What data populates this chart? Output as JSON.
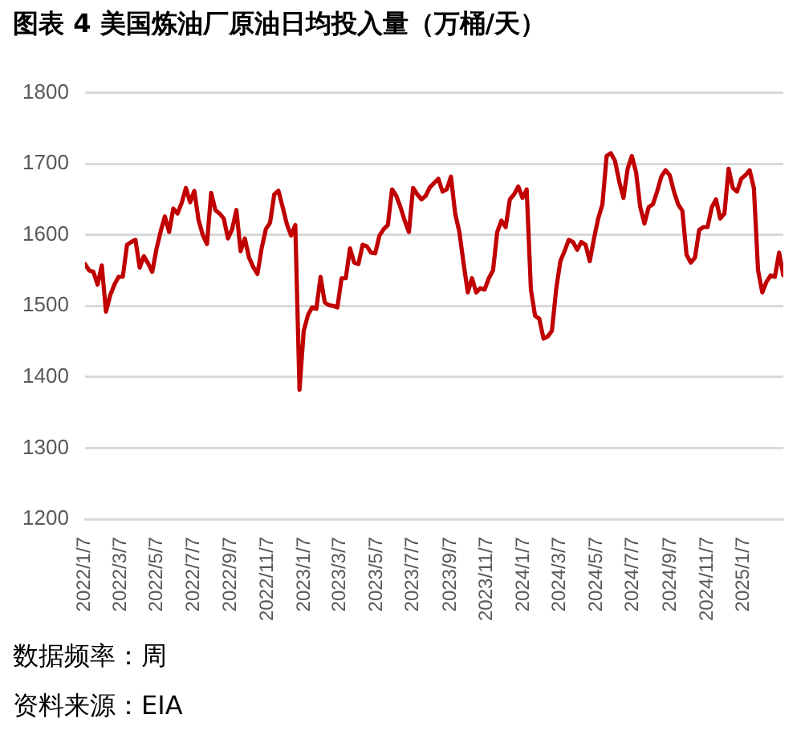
{
  "chart_data": {
    "type": "line",
    "title": "图表 4 美国炼油厂原油日均投入量（万桶/天）",
    "x": [
      "2022-01-07",
      "2022-01-14",
      "2022-01-21",
      "2022-01-28",
      "2022-02-04",
      "2022-02-11",
      "2022-02-18",
      "2022-02-25",
      "2022-03-04",
      "2022-03-11",
      "2022-03-18",
      "2022-03-25",
      "2022-04-01",
      "2022-04-08",
      "2022-04-15",
      "2022-04-22",
      "2022-04-29",
      "2022-05-06",
      "2022-05-13",
      "2022-05-20",
      "2022-05-27",
      "2022-06-03",
      "2022-06-10",
      "2022-06-17",
      "2022-06-24",
      "2022-07-01",
      "2022-07-08",
      "2022-07-15",
      "2022-07-22",
      "2022-07-29",
      "2022-08-05",
      "2022-08-12",
      "2022-08-19",
      "2022-08-26",
      "2022-09-02",
      "2022-09-09",
      "2022-09-16",
      "2022-09-23",
      "2022-09-30",
      "2022-10-07",
      "2022-10-14",
      "2022-10-21",
      "2022-10-28",
      "2022-11-04",
      "2022-11-11",
      "2022-11-18",
      "2022-11-25",
      "2022-12-02",
      "2022-12-09",
      "2022-12-16",
      "2022-12-23",
      "2022-12-30",
      "2023-01-06",
      "2023-01-13",
      "2023-01-20",
      "2023-01-27",
      "2023-02-03",
      "2023-02-10",
      "2023-02-17",
      "2023-02-24",
      "2023-03-03",
      "2023-03-10",
      "2023-03-17",
      "2023-03-24",
      "2023-03-31",
      "2023-04-07",
      "2023-04-14",
      "2023-04-21",
      "2023-04-28",
      "2023-05-05",
      "2023-05-12",
      "2023-05-19",
      "2023-05-26",
      "2023-06-02",
      "2023-06-09",
      "2023-06-16",
      "2023-06-23",
      "2023-06-30",
      "2023-07-07",
      "2023-07-14",
      "2023-07-21",
      "2023-07-28",
      "2023-08-04",
      "2023-08-11",
      "2023-08-18",
      "2023-08-25",
      "2023-09-01",
      "2023-09-08",
      "2023-09-15",
      "2023-09-22",
      "2023-09-29",
      "2023-10-06",
      "2023-10-13",
      "2023-10-20",
      "2023-10-27",
      "2023-11-03",
      "2023-11-10",
      "2023-11-17",
      "2023-11-24",
      "2023-12-01",
      "2023-12-08",
      "2023-12-15",
      "2023-12-22",
      "2023-12-29",
      "2024-01-05",
      "2024-01-12",
      "2024-01-19",
      "2024-01-26",
      "2024-02-02",
      "2024-02-09",
      "2024-02-16",
      "2024-02-23",
      "2024-03-01",
      "2024-03-08",
      "2024-03-15",
      "2024-03-22",
      "2024-03-29",
      "2024-04-05",
      "2024-04-12",
      "2024-04-19",
      "2024-04-26",
      "2024-05-03",
      "2024-05-10",
      "2024-05-17",
      "2024-05-24",
      "2024-05-31",
      "2024-06-07",
      "2024-06-14",
      "2024-06-21",
      "2024-06-28",
      "2024-07-05",
      "2024-07-12",
      "2024-07-19",
      "2024-07-26",
      "2024-08-02",
      "2024-08-09",
      "2024-08-16",
      "2024-08-23",
      "2024-08-30",
      "2024-09-06",
      "2024-09-13",
      "2024-09-20",
      "2024-09-27",
      "2024-10-04",
      "2024-10-11",
      "2024-10-18",
      "2024-10-25",
      "2024-11-01",
      "2024-11-08",
      "2024-11-15",
      "2024-11-22",
      "2024-11-29",
      "2024-12-06",
      "2024-12-13",
      "2024-12-20",
      "2024-12-27",
      "2025-01-03",
      "2025-01-10",
      "2025-01-17",
      "2025-01-24",
      "2025-01-31",
      "2025-02-07",
      "2025-02-14",
      "2025-02-21",
      "2025-02-28",
      "2025-03-07",
      "2025-03-14"
    ],
    "series": [
      {
        "color": "#c00000",
        "values": [
          1559,
          1550,
          1548,
          1530,
          1557,
          1492,
          1515,
          1530,
          1541,
          1541,
          1586,
          1590,
          1593,
          1554,
          1570,
          1560,
          1548,
          1580,
          1605,
          1626,
          1604,
          1637,
          1630,
          1645,
          1666,
          1646,
          1662,
          1621,
          1600,
          1587,
          1659,
          1635,
          1630,
          1623,
          1595,
          1608,
          1635,
          1577,
          1595,
          1568,
          1555,
          1545,
          1581,
          1608,
          1617,
          1657,
          1662,
          1639,
          1615,
          1599,
          1614,
          1382,
          1465,
          1487,
          1498,
          1496,
          1541,
          1505,
          1501,
          1500,
          1498,
          1539,
          1539,
          1581,
          1561,
          1559,
          1586,
          1584,
          1575,
          1574,
          1599,
          1608,
          1614,
          1664,
          1655,
          1639,
          1620,
          1604,
          1666,
          1657,
          1650,
          1655,
          1667,
          1673,
          1679,
          1661,
          1664,
          1682,
          1630,
          1604,
          1560,
          1519,
          1539,
          1519,
          1525,
          1523,
          1539,
          1550,
          1604,
          1620,
          1611,
          1650,
          1657,
          1668,
          1652,
          1664,
          1523,
          1486,
          1482,
          1454,
          1457,
          1465,
          1523,
          1563,
          1577,
          1593,
          1590,
          1579,
          1590,
          1586,
          1563,
          1595,
          1623,
          1643,
          1711,
          1715,
          1704,
          1675,
          1652,
          1693,
          1711,
          1688,
          1639,
          1616,
          1639,
          1643,
          1661,
          1682,
          1691,
          1684,
          1661,
          1643,
          1634,
          1572,
          1561,
          1568,
          1607,
          1611,
          1611,
          1639,
          1650,
          1623,
          1630,
          1693,
          1666,
          1661,
          1679,
          1684,
          1691,
          1666,
          1550,
          1519,
          1534,
          1543,
          1541,
          1575,
          1543
        ]
      }
    ],
    "xlim": [
      "2022-01-07",
      "2025-03-14"
    ],
    "xticks": [
      {
        "value": "2022-01-07",
        "label": "2022/1/7"
      },
      {
        "value": "2022-03-07",
        "label": "2022/3/7"
      },
      {
        "value": "2022-05-07",
        "label": "2022/5/7"
      },
      {
        "value": "2022-07-07",
        "label": "2022/7/7"
      },
      {
        "value": "2022-09-07",
        "label": "2022/9/7"
      },
      {
        "value": "2022-11-07",
        "label": "2022/11/7"
      },
      {
        "value": "2023-01-07",
        "label": "2023/1/7"
      },
      {
        "value": "2023-03-07",
        "label": "2023/3/7"
      },
      {
        "value": "2023-05-07",
        "label": "2023/5/7"
      },
      {
        "value": "2023-07-07",
        "label": "2023/7/7"
      },
      {
        "value": "2023-09-07",
        "label": "2023/9/7"
      },
      {
        "value": "2023-11-07",
        "label": "2023/11/7"
      },
      {
        "value": "2024-01-07",
        "label": "2024/1/7"
      },
      {
        "value": "2024-03-07",
        "label": "2024/3/7"
      },
      {
        "value": "2024-05-07",
        "label": "2024/5/7"
      },
      {
        "value": "2024-07-07",
        "label": "2024/7/7"
      },
      {
        "value": "2024-09-07",
        "label": "2024/9/7"
      },
      {
        "value": "2024-11-07",
        "label": "2024/11/7"
      },
      {
        "value": "2025-01-07",
        "label": "2025/1/7"
      }
    ],
    "ylim": [
      1200,
      1800
    ],
    "yticks": [
      1200,
      1300,
      1400,
      1500,
      1600,
      1700,
      1800
    ],
    "grid": "y",
    "legend": false,
    "marker": "none",
    "line_style": "solid",
    "annotations": [
      "数据频率：周",
      "资料来源：EIA"
    ]
  }
}
